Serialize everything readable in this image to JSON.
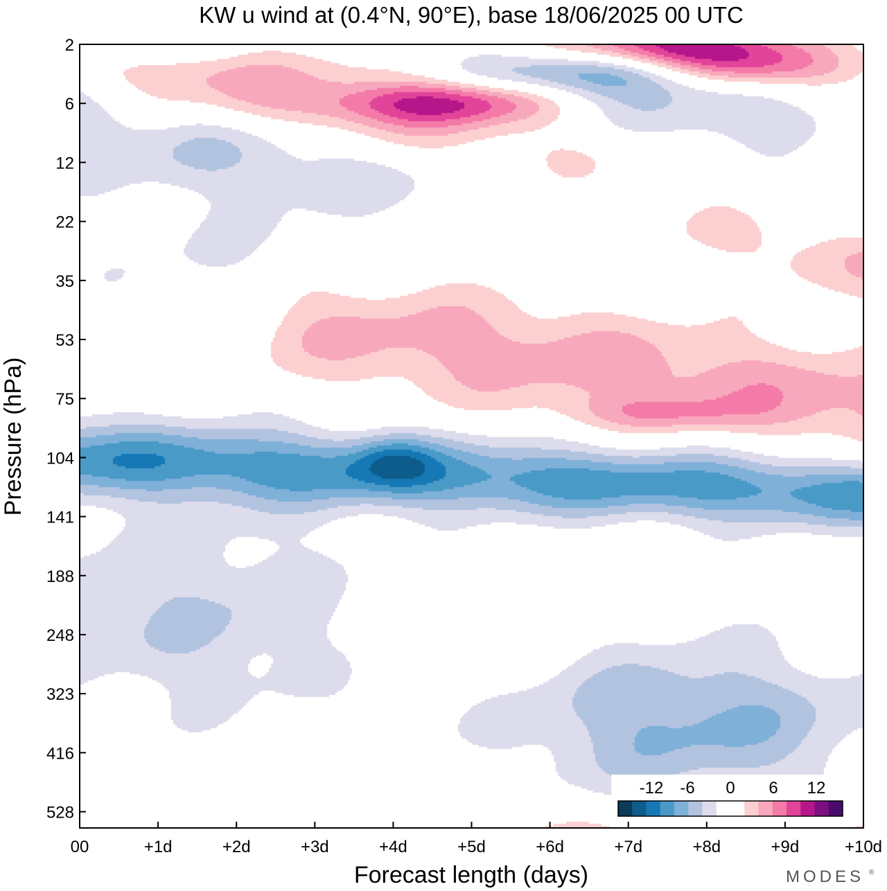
{
  "chart_data": {
    "type": "heatmap",
    "title": "KW u wind at (0.4°N, 90°E),  base 18/06/2025  00 UTC",
    "xlabel": "Forecast length (days)",
    "ylabel": "Pressure (hPa)",
    "x_ticks": [
      "00",
      "+1d",
      "+2d",
      "+3d",
      "+4d",
      "+5d",
      "+6d",
      "+7d",
      "+8d",
      "+9d",
      "+10d"
    ],
    "y_ticks": [
      "2",
      "6",
      "12",
      "22",
      "35",
      "53",
      "75",
      "104",
      "141",
      "188",
      "248",
      "323",
      "416",
      "528"
    ],
    "xlim": [
      0,
      10
    ],
    "y_order": "top-to-bottom",
    "grid": false,
    "colorbar": {
      "labels": [
        "-12",
        "-6",
        "0",
        "6",
        "12"
      ],
      "placement": "bottom-right",
      "colors": [
        "#0b3a5a",
        "#0d5c8c",
        "#1679b5",
        "#4a9ac8",
        "#7fb0d8",
        "#b2c3e0",
        "#dcdcec",
        "#ffffff",
        "#ffffff",
        "#fcd0d0",
        "#f8a8bc",
        "#f47aa8",
        "#e2449a",
        "#b5178a",
        "#7d1080",
        "#4a0a6e"
      ]
    },
    "levels": [
      -14,
      -12,
      -10,
      -8,
      -6,
      -4,
      -2,
      0,
      2,
      4,
      6,
      8,
      10,
      12,
      14
    ],
    "features": [
      {
        "type": "band",
        "days": [
          0,
          10
        ],
        "level_start": 1.7,
        "level_end": 3.2,
        "half_width": [
          0.6,
          0.5
        ],
        "peak_u": -4.5
      },
      {
        "type": "band",
        "days": [
          1.5,
          10
        ],
        "level_start": 0.9,
        "level_end": 3.7,
        "half_width": [
          0.6,
          0.6
        ],
        "peak_u": 5.5
      },
      {
        "type": "band",
        "days": [
          3,
          10
        ],
        "level_start": 5.0,
        "level_end": 6.3,
        "half_width": [
          0.7,
          0.6
        ],
        "peak_u": 5.0
      },
      {
        "type": "band",
        "days": [
          0,
          10
        ],
        "level_start": 7.2,
        "level_end": 7.8,
        "half_width": [
          0.45,
          0.4
        ],
        "peak_u": -9.0
      },
      {
        "type": "blob",
        "day": 7.5,
        "level": 0.35,
        "sd_day": 1.2,
        "sd_level": 0.25,
        "peak_u": 10.0
      },
      {
        "type": "blob",
        "day": 8.5,
        "level": 0.7,
        "sd_day": 0.8,
        "sd_level": 0.25,
        "peak_u": 8.0
      },
      {
        "type": "blob",
        "day": 4.7,
        "level": 1.3,
        "sd_day": 1.0,
        "sd_level": 0.25,
        "peak_u": 8.5
      },
      {
        "type": "blob",
        "day": 6.4,
        "level": 0.8,
        "sd_day": 1.0,
        "sd_level": 0.3,
        "peak_u": -8.0
      },
      {
        "type": "blob",
        "day": 8.0,
        "level": 1.5,
        "sd_day": 1.2,
        "sd_level": 0.4,
        "peak_u": -4.0
      },
      {
        "type": "blob",
        "day": 1.0,
        "level": 0.4,
        "sd_day": 0.8,
        "sd_level": 0.2,
        "peak_u": -3.5
      },
      {
        "type": "blob",
        "day": 4.0,
        "level": 7.25,
        "sd_day": 0.35,
        "sd_level": 0.3,
        "peak_u": -4.5
      },
      {
        "type": "blob",
        "day": 7.4,
        "level": 6.45,
        "sd_day": 0.9,
        "sd_level": 0.2,
        "peak_u": 3.5
      },
      {
        "type": "blob",
        "day": 1.5,
        "level": 9.8,
        "sd_day": 1.8,
        "sd_level": 1.2,
        "peak_u": -4.0
      },
      {
        "type": "blob",
        "day": 7.8,
        "level": 11.6,
        "sd_day": 1.6,
        "sd_level": 0.9,
        "peak_u": -6.5
      },
      {
        "type": "blob",
        "day": 4.5,
        "level": 10.0,
        "sd_day": 0.8,
        "sd_level": 0.7,
        "peak_u": 2.5
      },
      {
        "type": "blob",
        "day": 2.0,
        "level": 4.2,
        "sd_day": 1.2,
        "sd_level": 1.0,
        "peak_u": -2.5
      },
      {
        "type": "blob",
        "day": 7.0,
        "level": 14.0,
        "sd_day": 3.0,
        "sd_level": 0.55,
        "peak_u": 5.0
      }
    ]
  },
  "brand": {
    "text": "MODES",
    "mark": "®"
  }
}
